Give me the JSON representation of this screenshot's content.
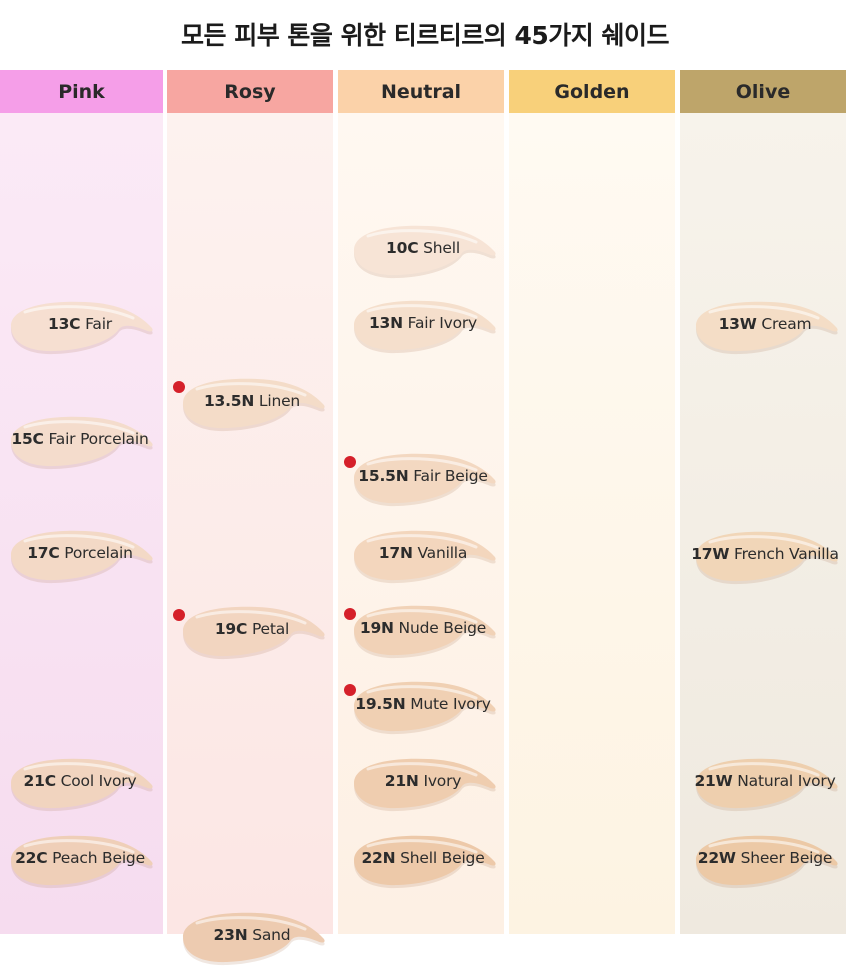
{
  "title": "모든 피부 톤을 위한 티르티르의 45가지 쉐이드",
  "columns": [
    {
      "name": "Pink",
      "header_color": "#f59ee8",
      "body_gradient": [
        "#fbeaf6",
        "#f6dcef"
      ],
      "swatches": [
        {
          "code": "13C",
          "name": "Fair",
          "color": "#f6dfd1",
          "marked": false
        },
        {
          "code": "15C",
          "name": "Fair Porcelain",
          "color": "#f4dccc",
          "marked": false
        },
        {
          "code": "17C",
          "name": "Porcelain",
          "color": "#f3d9c6",
          "marked": false
        },
        {
          "code": "21C",
          "name": "Cool Ivory",
          "color": "#f1d4bf",
          "marked": false
        },
        {
          "code": "22C",
          "name": "Peach Beige",
          "color": "#efcfb8",
          "marked": false
        }
      ]
    },
    {
      "name": "Rosy",
      "header_color": "#f7a6a1",
      "body_gradient": [
        "#fdf2ef",
        "#fce6e4"
      ],
      "swatches": [
        {
          "code": "13.5N",
          "name": "Linen",
          "color": "#f4dcc8",
          "marked": true
        },
        {
          "code": "19C",
          "name": "Petal",
          "color": "#f2d5c0",
          "marked": true
        },
        {
          "code": "23N",
          "name": "Sand",
          "color": "#edcbb0",
          "marked": false
        }
      ]
    },
    {
      "name": "Neutral",
      "header_color": "#fbd2a9",
      "body_gradient": [
        "#fff8f1",
        "#fdf0e4"
      ],
      "swatches": [
        {
          "code": "10C",
          "name": "Shell",
          "color": "#f7e4d6",
          "marked": false
        },
        {
          "code": "13N",
          "name": "Fair Ivory",
          "color": "#f5dfcc",
          "marked": false
        },
        {
          "code": "15.5N",
          "name": "Fair Beige",
          "color": "#f3d8c1",
          "marked": true
        },
        {
          "code": "17N",
          "name": "Vanilla",
          "color": "#f3d6bd",
          "marked": false
        },
        {
          "code": "19N",
          "name": "Nude Beige",
          "color": "#f1d2b7",
          "marked": true
        },
        {
          "code": "19.5N",
          "name": "Mute Ivory",
          "color": "#f0d0b3",
          "marked": true
        },
        {
          "code": "21N",
          "name": "Ivory",
          "color": "#efcdaf",
          "marked": false
        },
        {
          "code": "22N",
          "name": "Shell Beige",
          "color": "#edc9a9",
          "marked": false
        }
      ]
    },
    {
      "name": "Golden",
      "header_color": "#f8d07a",
      "body_gradient": [
        "#fffaf2",
        "#fdf3e2"
      ],
      "swatches": []
    },
    {
      "name": "Olive",
      "header_color": "#bea56a",
      "body_gradient": [
        "#f7f3eb",
        "#efe9df"
      ],
      "swatches": [
        {
          "code": "13W",
          "name": "Cream",
          "color": "#f4ddc6",
          "marked": false
        },
        {
          "code": "17W",
          "name": "French Vanilla",
          "color": "#f1d6b8",
          "marked": false
        },
        {
          "code": "21W",
          "name": "Natural Ivory",
          "color": "#eecfae",
          "marked": false
        },
        {
          "code": "22W",
          "name": "Sheer Beige",
          "color": "#ecc9a6",
          "marked": false
        }
      ]
    }
  ]
}
